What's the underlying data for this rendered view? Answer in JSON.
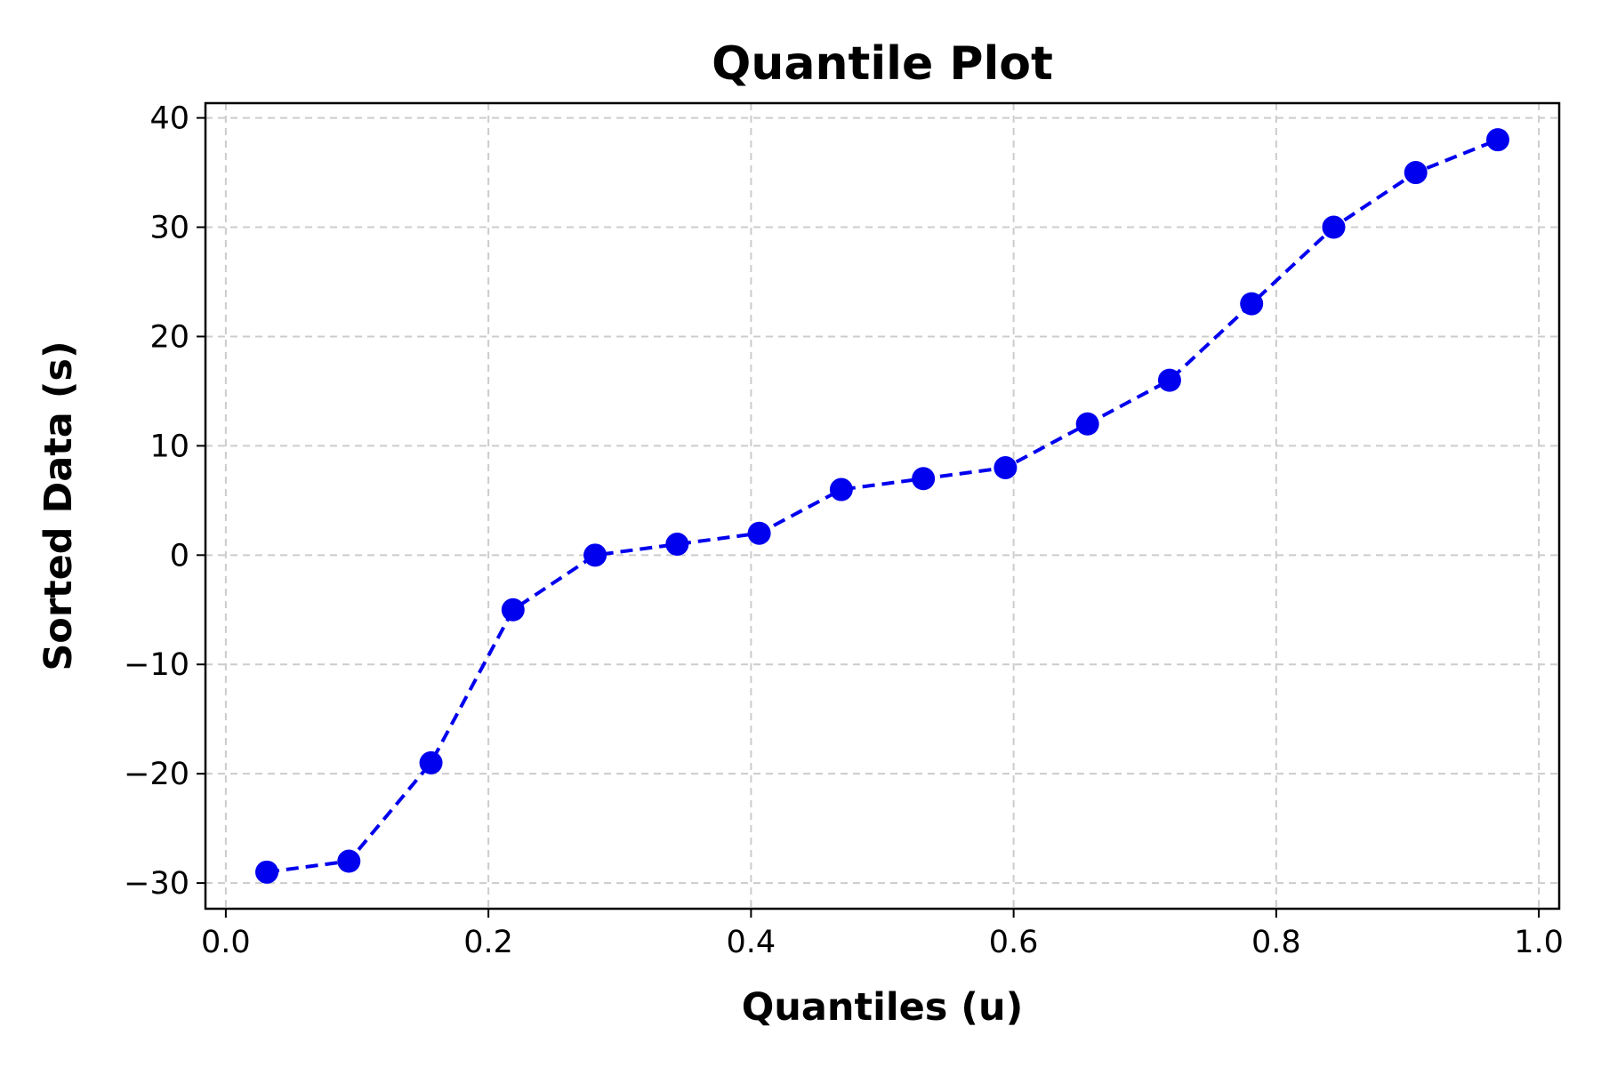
{
  "chart_data": {
    "type": "line",
    "title": "Quantile Plot",
    "xlabel": "Quantiles (u)",
    "ylabel": "Sorted Data (s)",
    "xlim": [
      -0.0155,
      1.0155
    ],
    "ylim": [
      -32.35,
      41.35
    ],
    "grid": true,
    "legend": false,
    "x_ticks": [
      0.0,
      0.2,
      0.4,
      0.6,
      0.8,
      1.0
    ],
    "x_tick_labels": [
      "0.0",
      "0.2",
      "0.4",
      "0.6",
      "0.8",
      "1.0"
    ],
    "y_ticks": [
      -30,
      -20,
      -10,
      0,
      10,
      20,
      30,
      40
    ],
    "y_tick_labels": [
      "−30",
      "−20",
      "−10",
      "0",
      "10",
      "20",
      "30",
      "40"
    ],
    "colors": {
      "series": "#0000ee",
      "grid": "#cccccc",
      "axes": "#000000"
    },
    "series": [
      {
        "line_style": "dashed",
        "marker": "circle",
        "x": [
          0.03125,
          0.09375,
          0.15625,
          0.21875,
          0.28125,
          0.34375,
          0.40625,
          0.46875,
          0.53125,
          0.59375,
          0.65625,
          0.71875,
          0.78125,
          0.84375,
          0.90625,
          0.96875
        ],
        "y": [
          -29,
          -28,
          -19,
          -5,
          0,
          1,
          2,
          6,
          7,
          8,
          12,
          16,
          23,
          30,
          35,
          38
        ]
      }
    ]
  }
}
